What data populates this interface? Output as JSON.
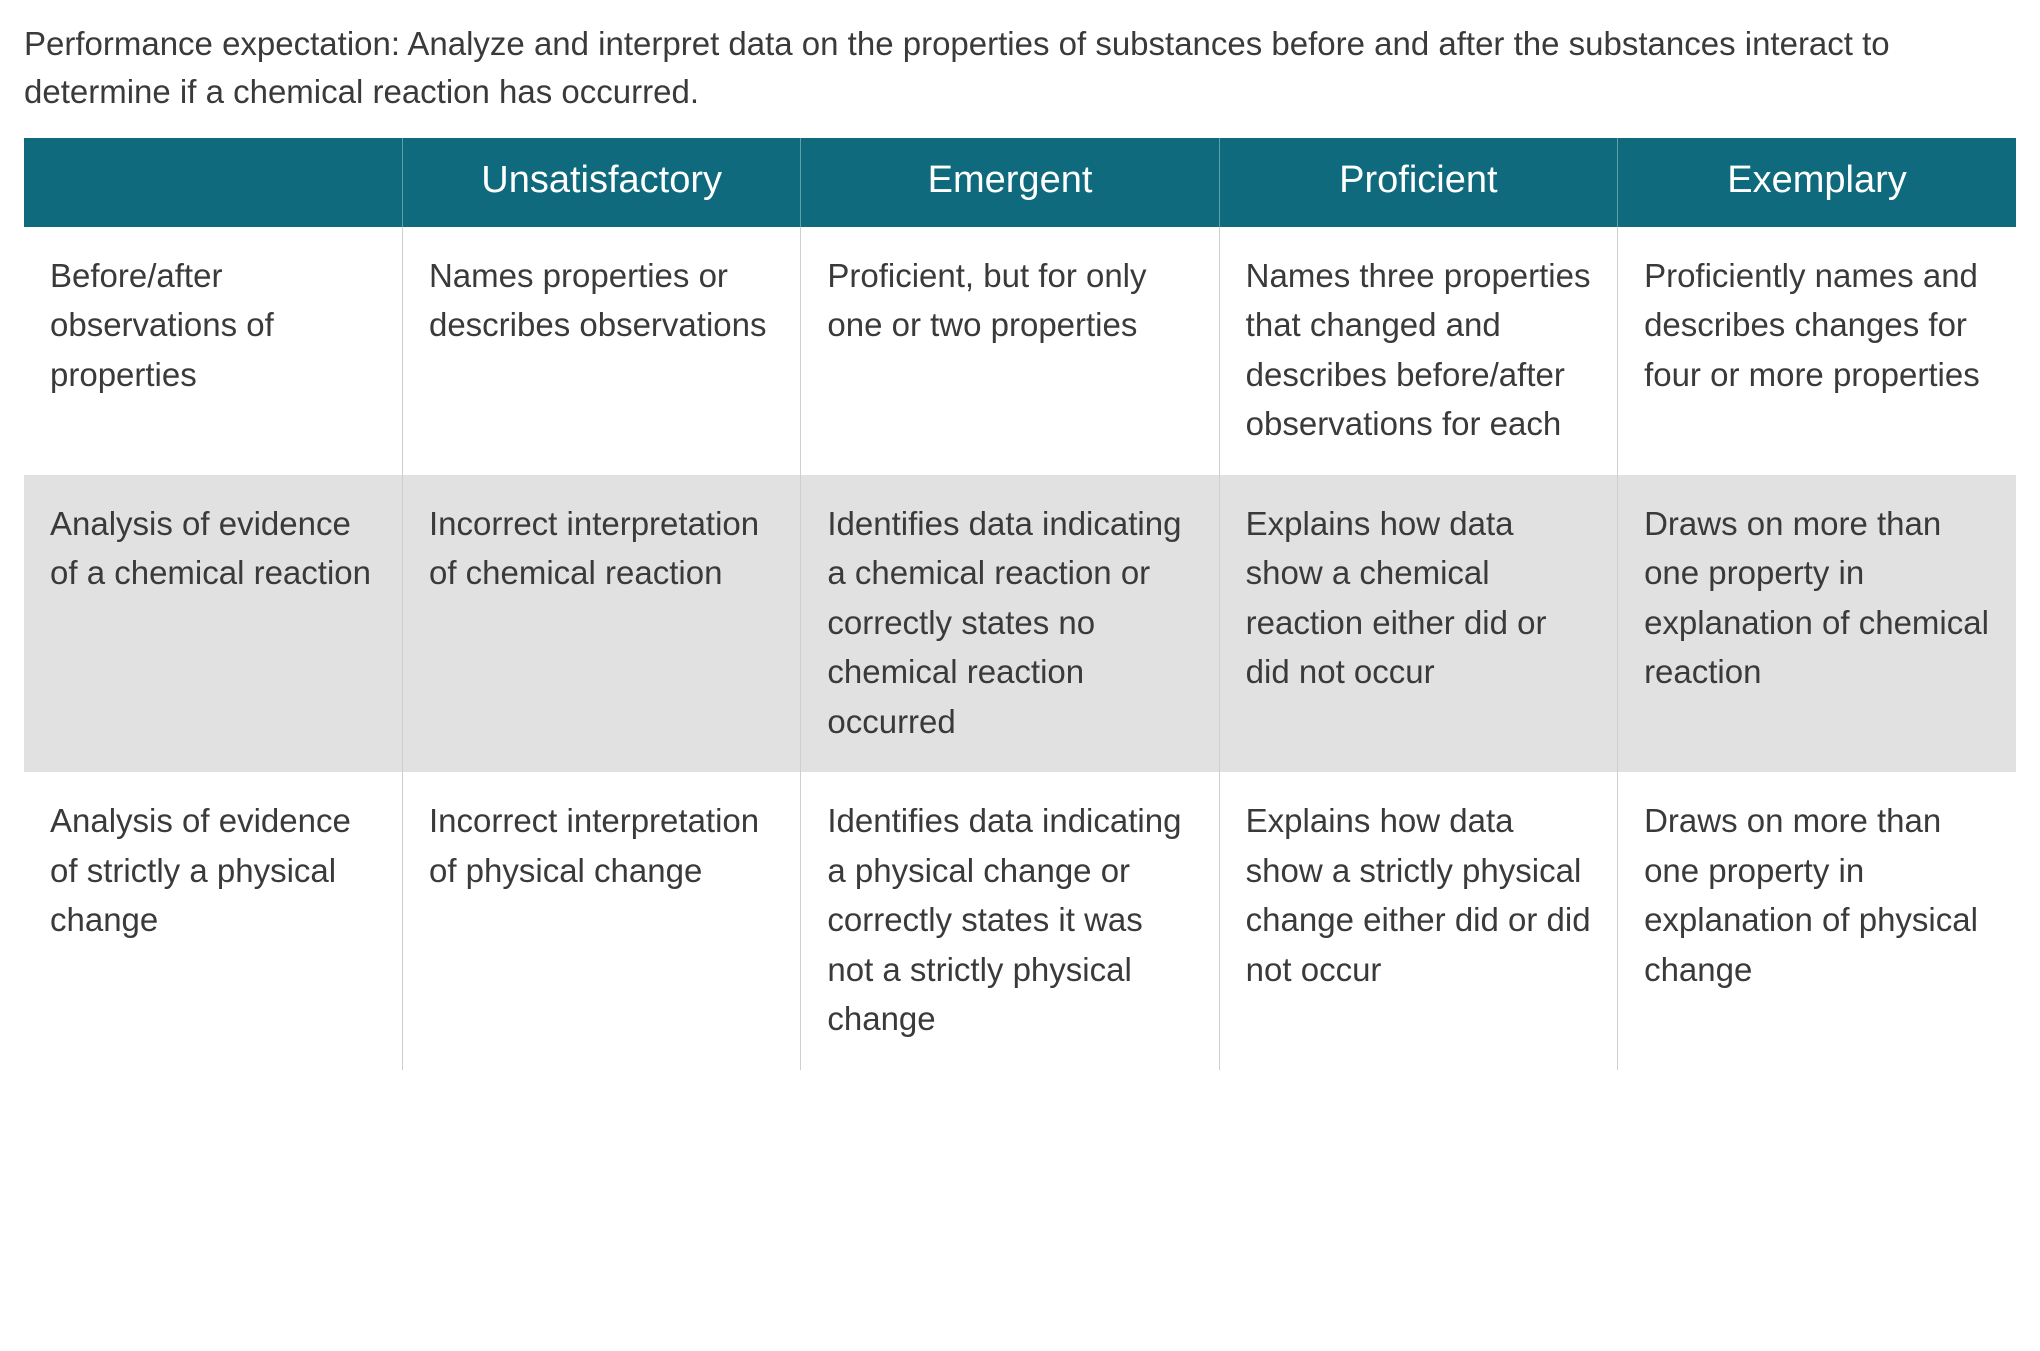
{
  "colors": {
    "header_bg": "#0f6a7d",
    "header_text": "#ffffff",
    "body_text": "#3a3a3a",
    "row_even_bg": "#ffffff",
    "row_odd_bg": "#e1e1e1",
    "cell_border": "#cfcfcf"
  },
  "typography": {
    "intro_fontsize_pt": 25,
    "header_fontsize_pt": 28,
    "cell_fontsize_pt": 25,
    "font_family": "Segoe UI / Helvetica Neue / Arial"
  },
  "layout": {
    "column_widths_pct": [
      19,
      20,
      21,
      20,
      20
    ],
    "header_align": "center",
    "cell_align": "left",
    "cell_valign": "top"
  },
  "intro": "Performance expectation: Analyze and interpret data on the properties of substances before and after the substances interact to determine if a chemical reaction has occurred.",
  "rubric": {
    "type": "table",
    "columns": [
      "",
      "Unsatisfactory",
      "Emergent",
      "Proficient",
      "Exemplary"
    ],
    "rows": [
      {
        "label": "Before/after observations of properties",
        "cells": [
          "Names properties or describes observations",
          "Proficient, but for only one or two properties",
          "Names three properties that changed and describes before/after observations for each",
          "Proficiently names and describes changes for four or more properties"
        ]
      },
      {
        "label": "Analysis of evidence of a chemical reaction",
        "cells": [
          "Incorrect interpretation of chemical reaction",
          "Identifies data indicating a chemical reaction or correctly states no chemical reaction occurred",
          "Explains how data show a chemical reaction either did or did not occur",
          "Draws on more than one property in explanation of chemical reaction"
        ]
      },
      {
        "label": "Analysis of evidence of strictly a physical change",
        "cells": [
          "Incorrect interpretation of physical change",
          "Identifies data indicating a physical change or correctly states it was not a strictly physical change",
          "Explains how data show a strictly physical change either did or did not occur",
          "Draws on more than one property in explanation of physical change"
        ]
      }
    ]
  }
}
